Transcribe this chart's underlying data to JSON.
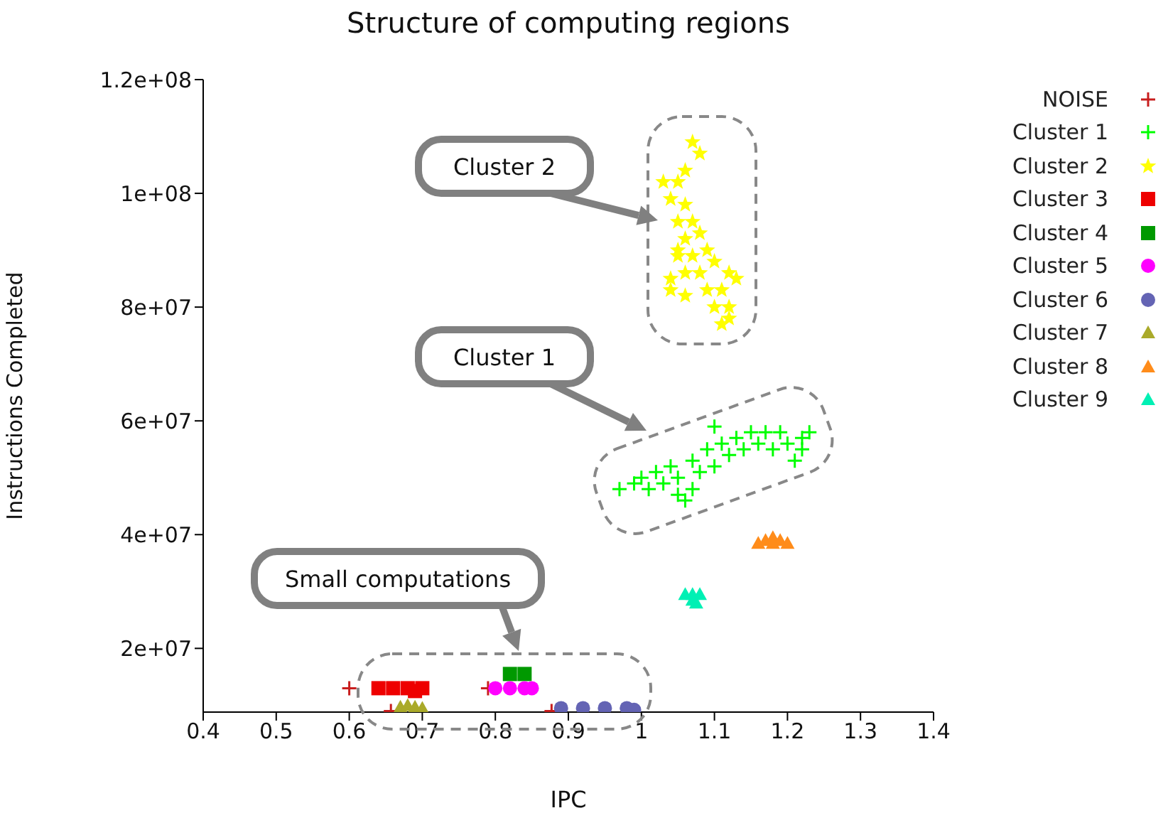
{
  "chart_data": {
    "type": "scatter",
    "title": "Structure of computing regions",
    "xlabel": "IPC",
    "ylabel": "Instructions Completed",
    "xlim": [
      0.4,
      1.4
    ],
    "xticks": [
      0.4,
      0.5,
      0.6,
      0.7,
      0.8,
      0.9,
      1,
      1.1,
      1.2,
      1.3,
      1.4
    ],
    "ylim": [
      8800000.0,
      120000000.0
    ],
    "yticks": [
      {
        "value": 20000000.0,
        "label": "2e+07"
      },
      {
        "value": 40000000.0,
        "label": "4e+07"
      },
      {
        "value": 60000000.0,
        "label": "6e+07"
      },
      {
        "value": 80000000.0,
        "label": "8e+07"
      },
      {
        "value": 100000000.0,
        "label": "1e+08"
      },
      {
        "value": 120000000.0,
        "label": "1.2e+08"
      }
    ],
    "grid": false,
    "legend": "right",
    "series": [
      {
        "name": "NOISE",
        "color": "#c81e1e",
        "marker": "cross",
        "x": [
          0.6,
          0.657,
          0.79,
          0.877
        ],
        "values": [
          13000000.0,
          9000000.0,
          13000000.0,
          9000000.0
        ]
      },
      {
        "name": "Cluster 1",
        "color": "#00ff00",
        "marker": "cross",
        "x": [
          0.97,
          0.99,
          1.0,
          1.01,
          1.02,
          1.03,
          1.04,
          1.05,
          1.06,
          1.07,
          1.07,
          1.08,
          1.09,
          1.1,
          1.1,
          1.11,
          1.12,
          1.13,
          1.14,
          1.15,
          1.16,
          1.17,
          1.18,
          1.19,
          1.2,
          1.21,
          1.22,
          1.23,
          1.22,
          1.05
        ],
        "values": [
          48000000.0,
          49000000.0,
          50000000.0,
          48000000.0,
          51000000.0,
          49000000.0,
          52000000.0,
          50000000.0,
          46000000.0,
          48000000.0,
          53000000.0,
          51000000.0,
          55000000.0,
          59000000.0,
          52000000.0,
          56000000.0,
          54000000.0,
          57000000.0,
          55000000.0,
          58000000.0,
          56000000.0,
          58000000.0,
          55000000.0,
          58000000.0,
          56000000.0,
          53000000.0,
          57000000.0,
          58000000.0,
          55000000.0,
          47000000.0
        ]
      },
      {
        "name": "Cluster 2",
        "color": "#ffff00",
        "marker": "star",
        "x": [
          1.07,
          1.08,
          1.06,
          1.05,
          1.04,
          1.06,
          1.05,
          1.07,
          1.06,
          1.08,
          1.05,
          1.07,
          1.09,
          1.06,
          1.08,
          1.1,
          1.12,
          1.04,
          1.06,
          1.09,
          1.11,
          1.13,
          1.1,
          1.12,
          1.11,
          1.12,
          1.05,
          1.04,
          1.03
        ],
        "values": [
          109000000.0,
          107000000.0,
          104000000.0,
          102000000.0,
          99000000.0,
          98000000.0,
          95000000.0,
          95000000.0,
          92000000.0,
          93000000.0,
          89000000.0,
          89000000.0,
          90000000.0,
          86000000.0,
          86000000.0,
          88000000.0,
          86000000.0,
          83000000.0,
          82000000.0,
          83000000.0,
          83000000.0,
          85000000.0,
          80000000.0,
          80000000.0,
          77000000.0,
          78000000.0,
          90000000.0,
          85000000.0,
          102000000.0
        ]
      },
      {
        "name": "Cluster 3",
        "color": "#ee0000",
        "marker": "square",
        "x": [
          0.64,
          0.66,
          0.68,
          0.7,
          0.69
        ],
        "values": [
          13000000.0,
          13000000.0,
          13000000.0,
          13000000.0,
          12500000.0
        ]
      },
      {
        "name": "Cluster 4",
        "color": "#009900",
        "marker": "square",
        "x": [
          0.82,
          0.84
        ],
        "values": [
          15500000.0,
          15500000.0
        ]
      },
      {
        "name": "Cluster 5",
        "color": "#ff00ff",
        "marker": "circle",
        "x": [
          0.8,
          0.82,
          0.84,
          0.85
        ],
        "values": [
          13000000.0,
          13000000.0,
          13000000.0,
          13000000.0
        ]
      },
      {
        "name": "Cluster 6",
        "color": "#6464b4",
        "marker": "circle",
        "x": [
          0.89,
          0.92,
          0.95,
          0.98,
          0.99
        ],
        "values": [
          9500000.0,
          9500000.0,
          9500000.0,
          9500000.0,
          9200000.0
        ]
      },
      {
        "name": "Cluster 7",
        "color": "#aaaa2a",
        "marker": "triangle",
        "x": [
          0.67,
          0.68,
          0.69,
          0.7
        ],
        "values": [
          9700000.0,
          10000000.0,
          9700000.0,
          9500000.0
        ]
      },
      {
        "name": "Cluster 8",
        "color": "#ff8c1a",
        "marker": "triangle",
        "x": [
          1.16,
          1.17,
          1.18,
          1.19,
          1.2,
          1.18
        ],
        "values": [
          38500000.0,
          39000000.0,
          39500000.0,
          39000000.0,
          38500000.0,
          38500000.0
        ]
      },
      {
        "name": "Cluster 9",
        "color": "#00f0b4",
        "marker": "triangle",
        "x": [
          1.06,
          1.07,
          1.08,
          1.07,
          1.075
        ],
        "values": [
          29500000.0,
          29500000.0,
          29500000.0,
          28500000.0,
          28000000.0
        ]
      }
    ],
    "annotations": [
      "Cluster 2",
      "Cluster 1",
      "Small computations"
    ]
  }
}
